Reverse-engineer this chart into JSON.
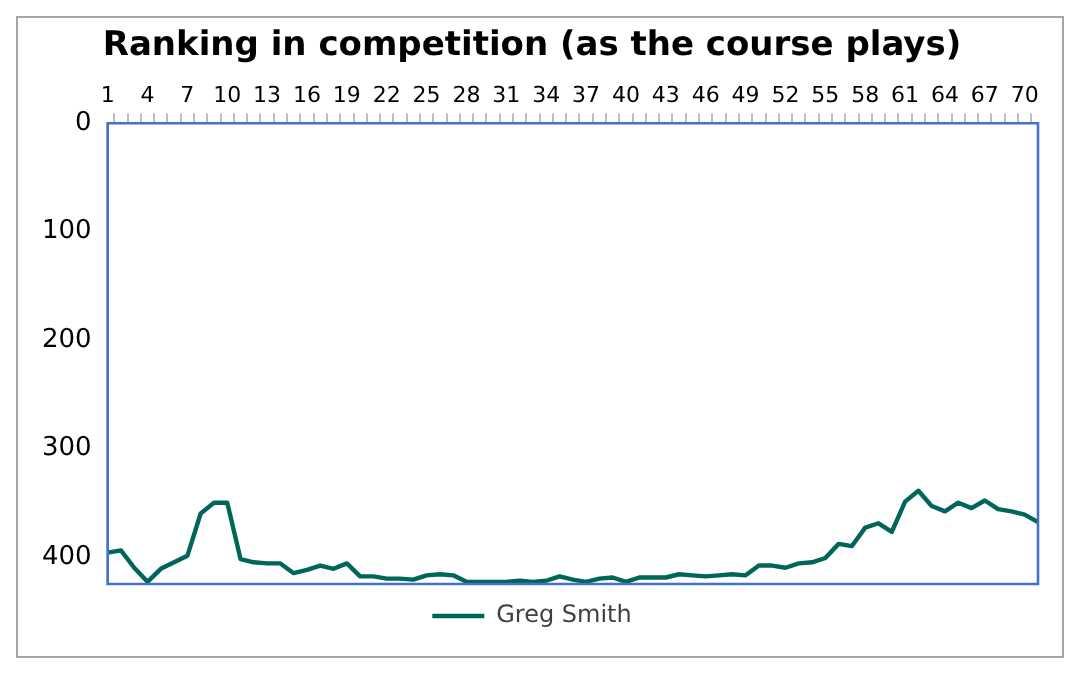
{
  "chart_data": {
    "type": "line",
    "title": "Ranking in competition (as the course plays)",
    "categories": [
      "1",
      null,
      null,
      "4",
      null,
      null,
      "7",
      null,
      null,
      "10",
      null,
      null,
      "13",
      null,
      null,
      "16",
      null,
      null,
      "19",
      null,
      null,
      "22",
      null,
      null,
      "25",
      null,
      null,
      "28",
      null,
      null,
      "31",
      null,
      null,
      "34",
      null,
      null,
      "37",
      null,
      null,
      "40",
      null,
      null,
      "43",
      null,
      null,
      "46",
      null,
      null,
      "49",
      null,
      null,
      "52",
      null,
      null,
      "55",
      null,
      null,
      "58",
      null,
      null,
      "61",
      null,
      null,
      "64",
      null,
      null,
      "67",
      null,
      null,
      "70",
      null
    ],
    "series": [
      {
        "name": "Greg Smith",
        "color": "#00665a",
        "values": [
          396,
          394,
          410,
          423,
          411,
          405,
          399,
          360,
          350,
          350,
          402,
          405,
          406,
          406,
          415,
          412,
          408,
          411,
          406,
          418,
          418,
          420,
          420,
          421,
          417,
          416,
          417,
          423,
          423,
          423,
          423,
          422,
          423,
          422,
          418,
          421,
          423,
          420,
          419,
          423,
          419,
          419,
          419,
          416,
          417,
          418,
          417,
          416,
          417,
          408,
          408,
          410,
          406,
          405,
          401,
          388,
          390,
          373,
          369,
          377,
          349,
          339,
          353,
          358,
          350,
          355,
          348,
          356,
          358,
          361,
          368
        ]
      }
    ],
    "ylim": [
      425,
      0
    ],
    "yticks": [
      0,
      100,
      200,
      300,
      400
    ],
    "legend": "bottom",
    "marker": "none",
    "line_style": "solid"
  }
}
